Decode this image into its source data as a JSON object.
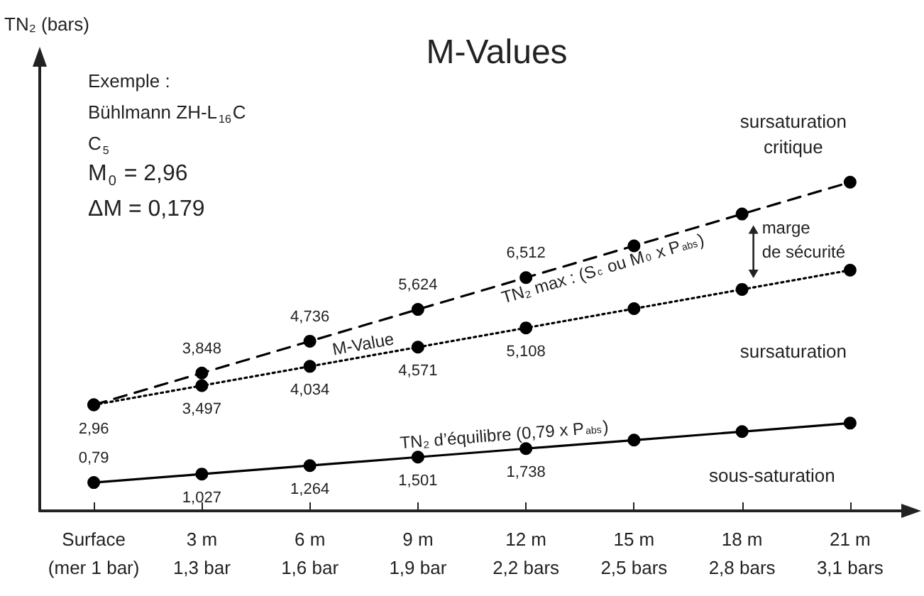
{
  "chart_data": {
    "type": "line",
    "title": "M-Values",
    "categories": [
      "Surface\n(mer 1 bar)",
      "3 m\n1,3 bar",
      "6 m\n1,6 bar",
      "9 m\n1,9 bar",
      "12 m\n2,2 bars",
      "15 m\n2,5 bars",
      "18 m\n2,8 bars",
      "21 m\n3,1 bars"
    ],
    "series": [
      {
        "name": "TN₂ max : (S$_{c}$ ou M$_{0}$ x P$_{abs}$)",
        "color": "#000000",
        "line_style": "dashed",
        "values": [
          2.96,
          3.848,
          4.736,
          5.624,
          6.512,
          7.4,
          8.288,
          9.176
        ],
        "value_labels": [
          null,
          "3,848",
          "4,736",
          "5,624",
          "6,512",
          null,
          null,
          null
        ]
      },
      {
        "name": "M-Value",
        "color": "#000000",
        "line_style": "dotted",
        "values": [
          2.96,
          3.497,
          4.034,
          4.571,
          5.108,
          5.645,
          6.182,
          6.719
        ],
        "value_labels": [
          "2,96",
          "3,497",
          "4,034",
          "4,571",
          "5,108",
          null,
          null,
          null
        ]
      },
      {
        "name": "TN₂ d’équilibre (0,79 x P$_{abs}$)",
        "color": "#000000",
        "line_style": "solid",
        "values": [
          0.79,
          1.027,
          1.264,
          1.501,
          1.738,
          1.975,
          2.212,
          2.449
        ],
        "value_labels": [
          "0,79",
          "1,027",
          "1,264",
          "1,501",
          "1,738",
          null,
          null,
          null
        ]
      }
    ],
    "annotations": [
      "Exemple :",
      "Bühlmann ZH-L$_{16}$C",
      "C$_{5}$",
      "M$_{0}$ = 2,96",
      "ΔM = 0,179",
      "sursaturation\ncritique",
      "marge\nde sécurité",
      "sursaturation",
      "sous-saturation",
      "TN₂ (bars)"
    ],
    "marker": "circle",
    "legend": false,
    "grid": false,
    "tick_labels": "x"
  }
}
